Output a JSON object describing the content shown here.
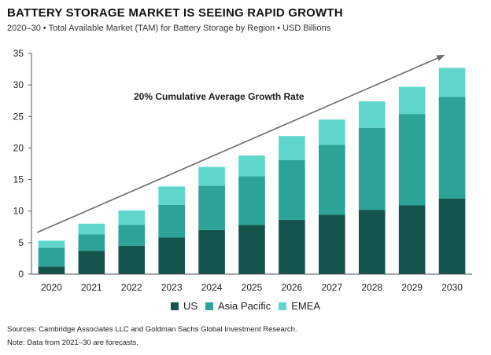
{
  "header": {
    "title": "BATTERY STORAGE MARKET IS SEEING RAPID GROWTH",
    "subtitle": "2020–30 • Total Available Market (TAM) for Battery Storage by Region • USD Billions"
  },
  "chart_data": {
    "type": "bar",
    "stacked": true,
    "categories": [
      "2020",
      "2021",
      "2022",
      "2023",
      "2024",
      "2025",
      "2026",
      "2027",
      "2028",
      "2029",
      "2030"
    ],
    "series": [
      {
        "name": "US",
        "color": "#14544d",
        "values": [
          1.2,
          3.7,
          4.5,
          5.8,
          7.0,
          7.8,
          8.6,
          9.4,
          10.2,
          10.9,
          12.0
        ]
      },
      {
        "name": "Asia Pacific",
        "color": "#2ba396",
        "values": [
          3.0,
          2.6,
          3.3,
          5.2,
          7.0,
          7.7,
          9.5,
          11.1,
          13.0,
          14.5,
          16.1
        ]
      },
      {
        "name": "EMEA",
        "color": "#5fd6cc",
        "values": [
          1.1,
          1.7,
          2.3,
          2.9,
          3.0,
          3.3,
          3.8,
          4.0,
          4.2,
          4.3,
          4.6
        ]
      }
    ],
    "ylim": [
      0,
      35
    ],
    "yticks": [
      0,
      5,
      10,
      15,
      20,
      25,
      30,
      35
    ],
    "grid": false,
    "legend": "bottom-center",
    "annotation": "20% Cumulative Average Growth Rate",
    "trend_arrow": {
      "from": {
        "x": "2020",
        "y": 6.6
      },
      "to": {
        "x": "2030",
        "y": 34.7
      }
    }
  },
  "footer": {
    "sources": "Sources: Cambridge Associates LLC and Goldman Sachs Global Investment Research.",
    "note": "Note: Data from 2021–30 are forecasts."
  }
}
